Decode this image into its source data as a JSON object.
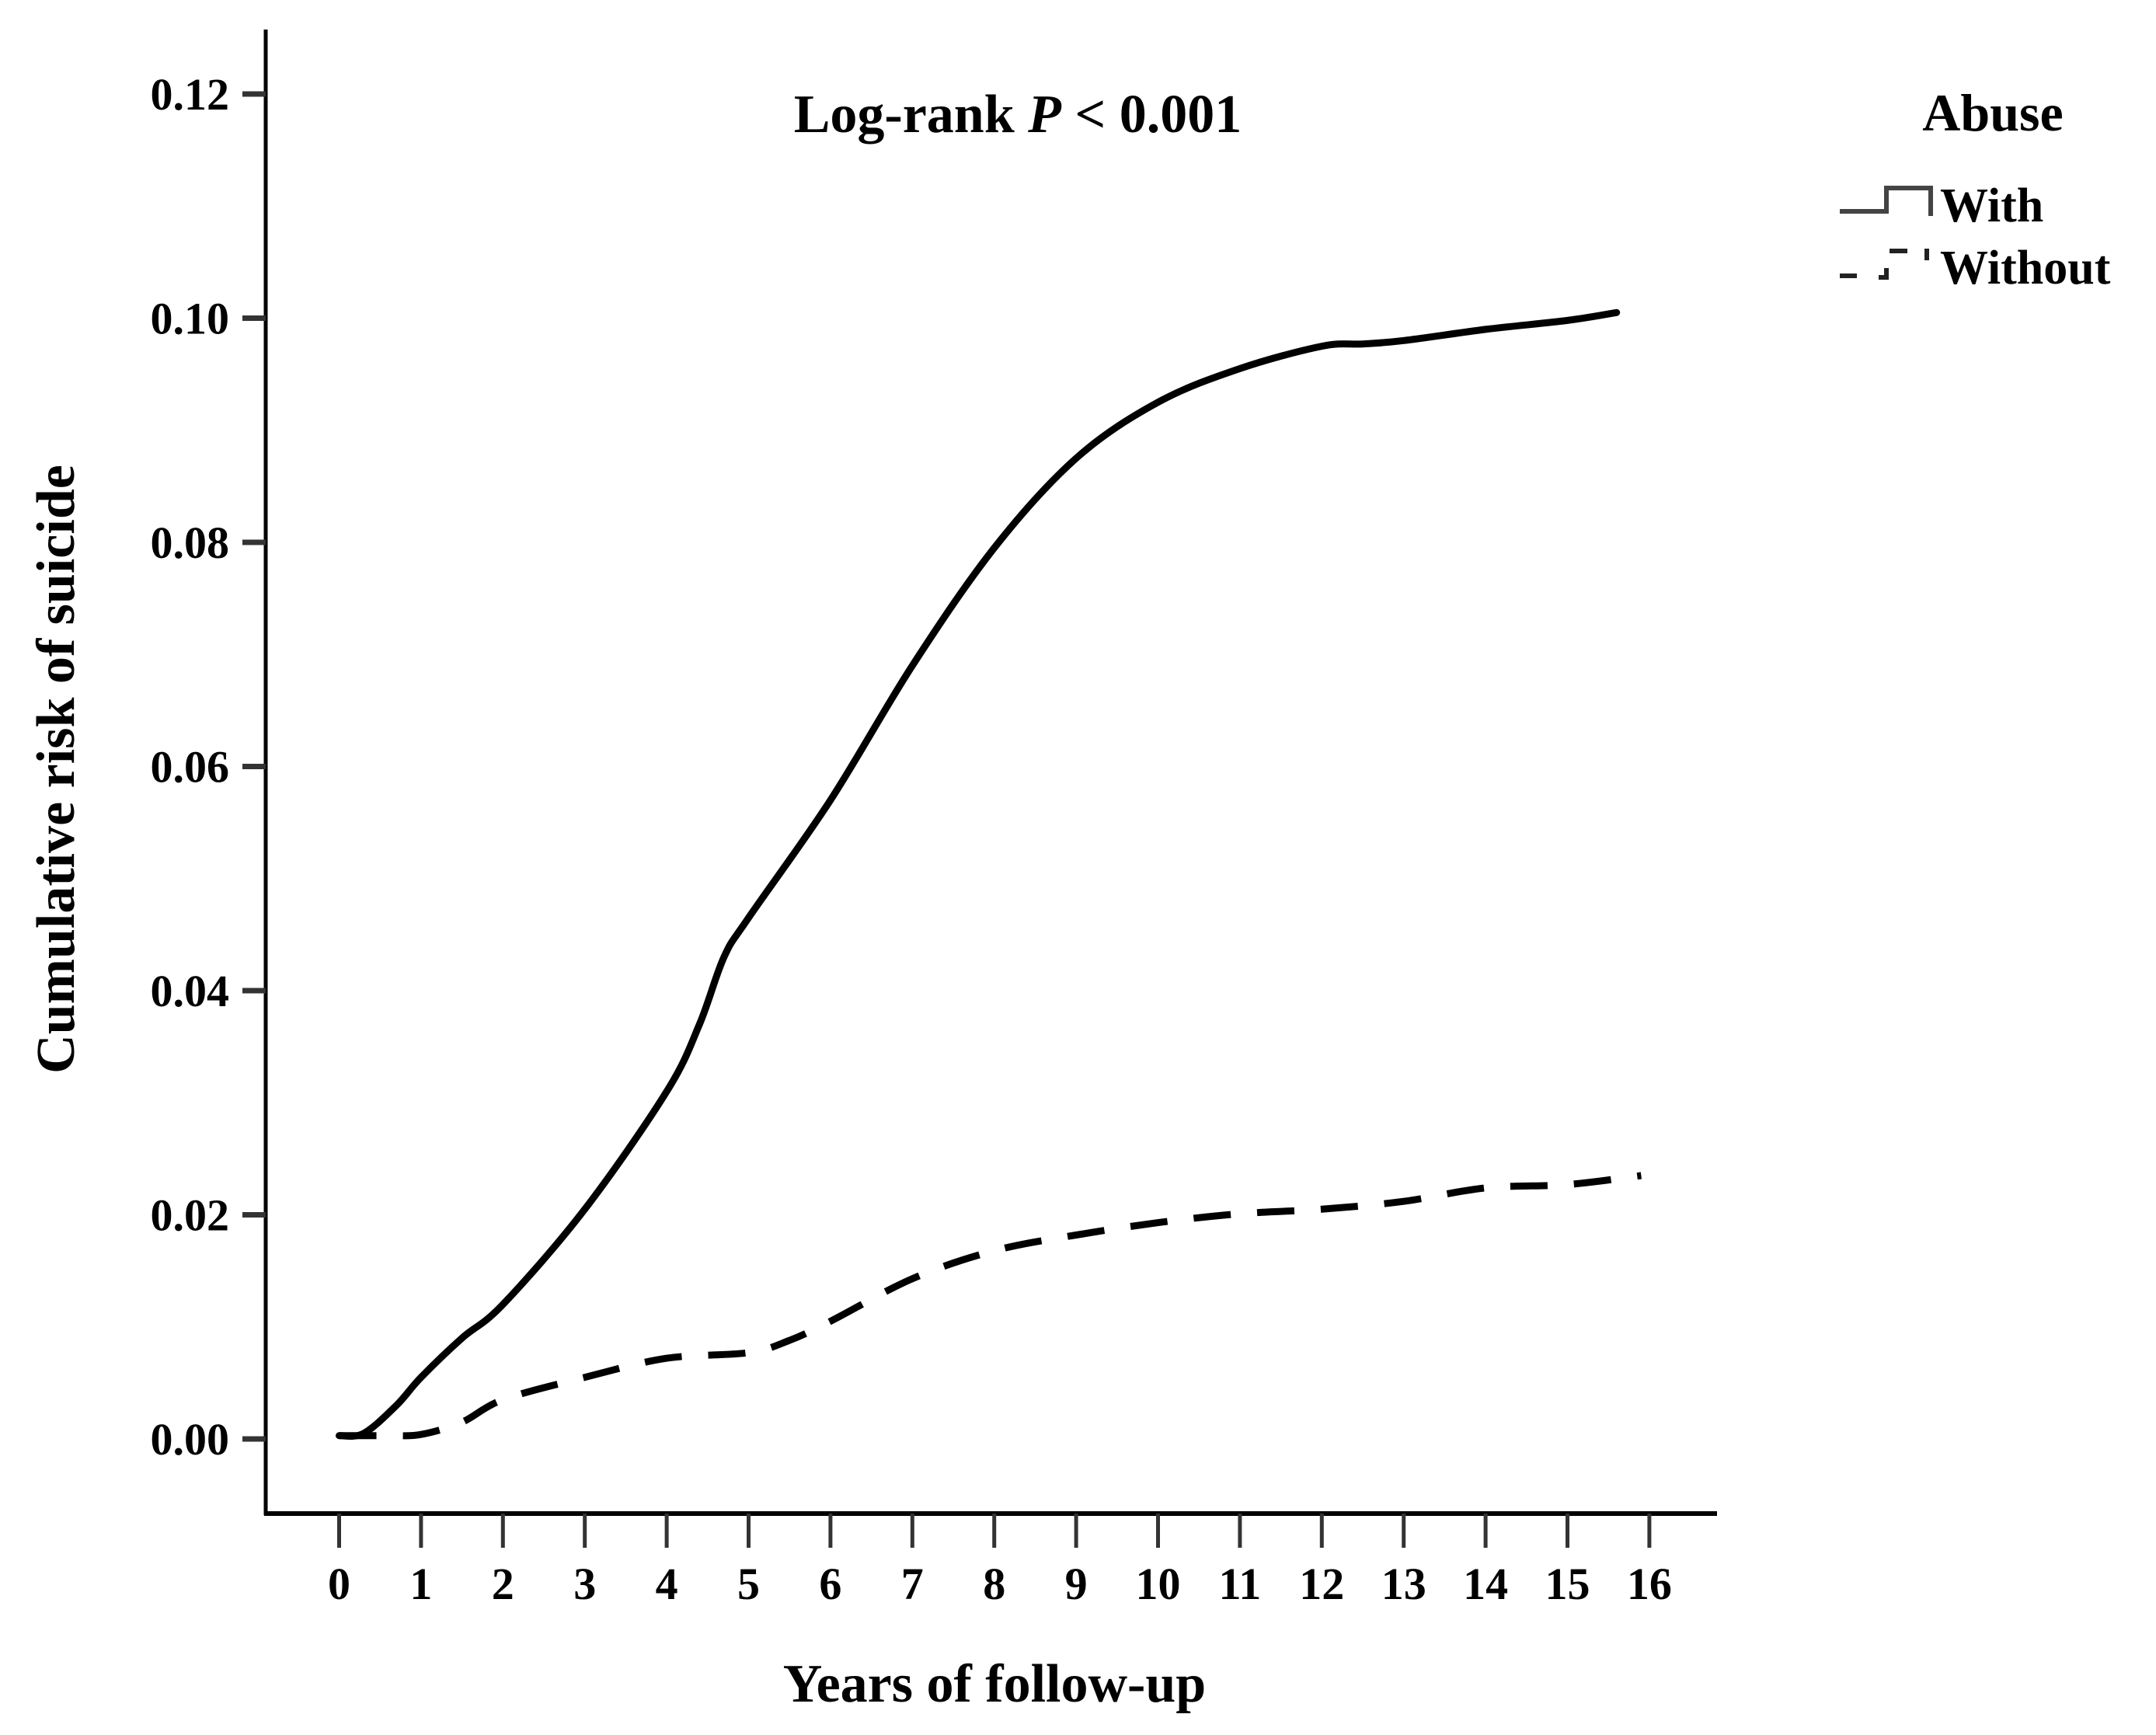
{
  "chart_data": {
    "type": "line",
    "title": "",
    "annotation": {
      "prefix": "Log-rank ",
      "italic": "P",
      "suffix": " < 0.001"
    },
    "xlabel": "Years of follow-up",
    "ylabel": "Cumulative risk of suicide",
    "xlim": [
      0,
      16
    ],
    "ylim": [
      0.0,
      0.12
    ],
    "x_ticks": [
      0,
      1,
      2,
      3,
      4,
      5,
      6,
      7,
      8,
      9,
      10,
      11,
      12,
      13,
      14,
      15,
      16
    ],
    "y_ticks": [
      "0.00",
      "0.02",
      "0.04",
      "0.06",
      "0.08",
      "0.10",
      "0.12"
    ],
    "grid": false,
    "legend": {
      "title": "Abuse",
      "position": "top-right, outside plot",
      "entries": [
        {
          "label": "With",
          "style": "solid"
        },
        {
          "label": "Without",
          "style": "dashed"
        }
      ]
    },
    "x": [
      0,
      0.3,
      1,
      2,
      3,
      4,
      4.5,
      5,
      6,
      7,
      8,
      9,
      10,
      11,
      12,
      13,
      14,
      15,
      15.6
    ],
    "series": [
      {
        "name": "With",
        "style": "solid",
        "color": "#000000",
        "points": [
          [
            0,
            0.0003
          ],
          [
            0.3,
            0.0005
          ],
          [
            0.7,
            0.003
          ],
          [
            1,
            0.0055
          ],
          [
            1.5,
            0.009
          ],
          [
            2,
            0.012
          ],
          [
            3,
            0.0205
          ],
          [
            4,
            0.031
          ],
          [
            4.4,
            0.037
          ],
          [
            4.7,
            0.043
          ],
          [
            5,
            0.0465
          ],
          [
            6,
            0.057
          ],
          [
            7,
            0.069
          ],
          [
            8,
            0.0795
          ],
          [
            9,
            0.0875
          ],
          [
            10,
            0.0925
          ],
          [
            11,
            0.0955
          ],
          [
            12,
            0.0975
          ],
          [
            12.5,
            0.0977
          ],
          [
            13,
            0.098
          ],
          [
            14,
            0.099
          ],
          [
            15,
            0.0998
          ],
          [
            15.6,
            0.1005
          ]
        ]
      },
      {
        "name": "Without",
        "style": "dashed",
        "color": "#000000",
        "points": [
          [
            0,
            0.0003
          ],
          [
            0.6,
            0.0003
          ],
          [
            1,
            0.0004
          ],
          [
            1.5,
            0.0015
          ],
          [
            2,
            0.0035
          ],
          [
            3,
            0.0055
          ],
          [
            4,
            0.0072
          ],
          [
            5,
            0.0077
          ],
          [
            5.5,
            0.0088
          ],
          [
            6,
            0.0105
          ],
          [
            7,
            0.0143
          ],
          [
            8,
            0.0168
          ],
          [
            9,
            0.0182
          ],
          [
            10,
            0.0193
          ],
          [
            11,
            0.0201
          ],
          [
            12,
            0.0205
          ],
          [
            13,
            0.0212
          ],
          [
            14,
            0.0224
          ],
          [
            15,
            0.0227
          ],
          [
            15.9,
            0.0235
          ]
        ]
      }
    ]
  }
}
